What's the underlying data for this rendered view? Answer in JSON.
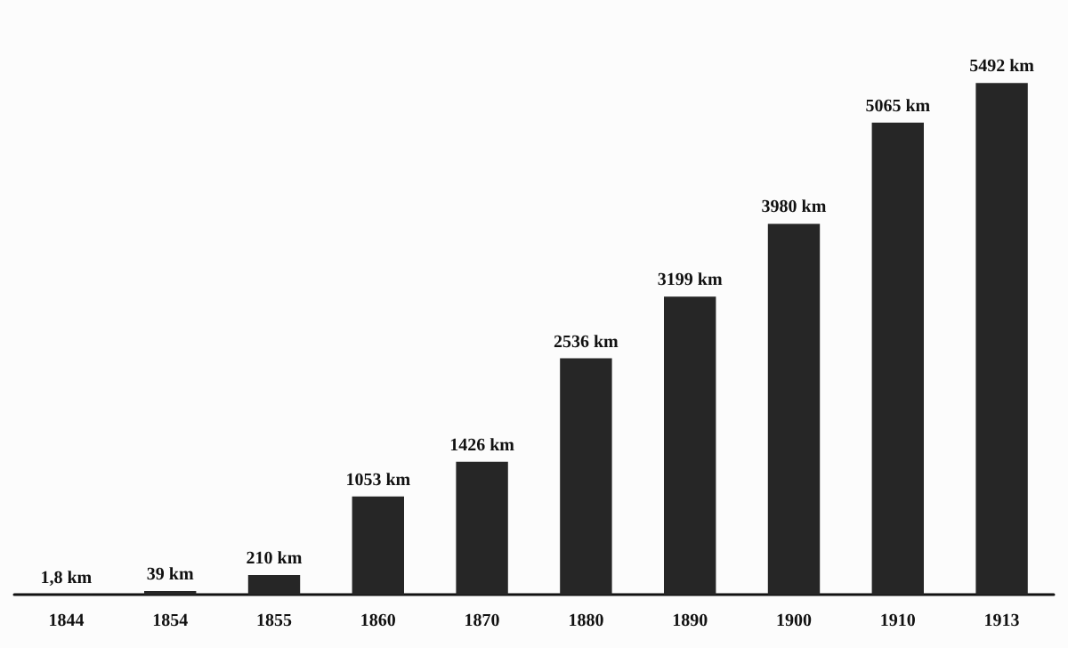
{
  "chart_data": {
    "type": "bar",
    "categories": [
      "1844",
      "1854",
      "1855",
      "1860",
      "1870",
      "1880",
      "1890",
      "1900",
      "1910",
      "1913"
    ],
    "values": [
      1.8,
      39,
      210,
      1053,
      1426,
      2536,
      3199,
      3980,
      5065,
      5492
    ],
    "value_labels": [
      "1,8 km",
      "39 km",
      "210 km",
      "1053 km",
      "1426 km",
      "2536 km",
      "3199 km",
      "3980 km",
      "5065 km",
      "5492 km"
    ],
    "color": "#262626"
  }
}
